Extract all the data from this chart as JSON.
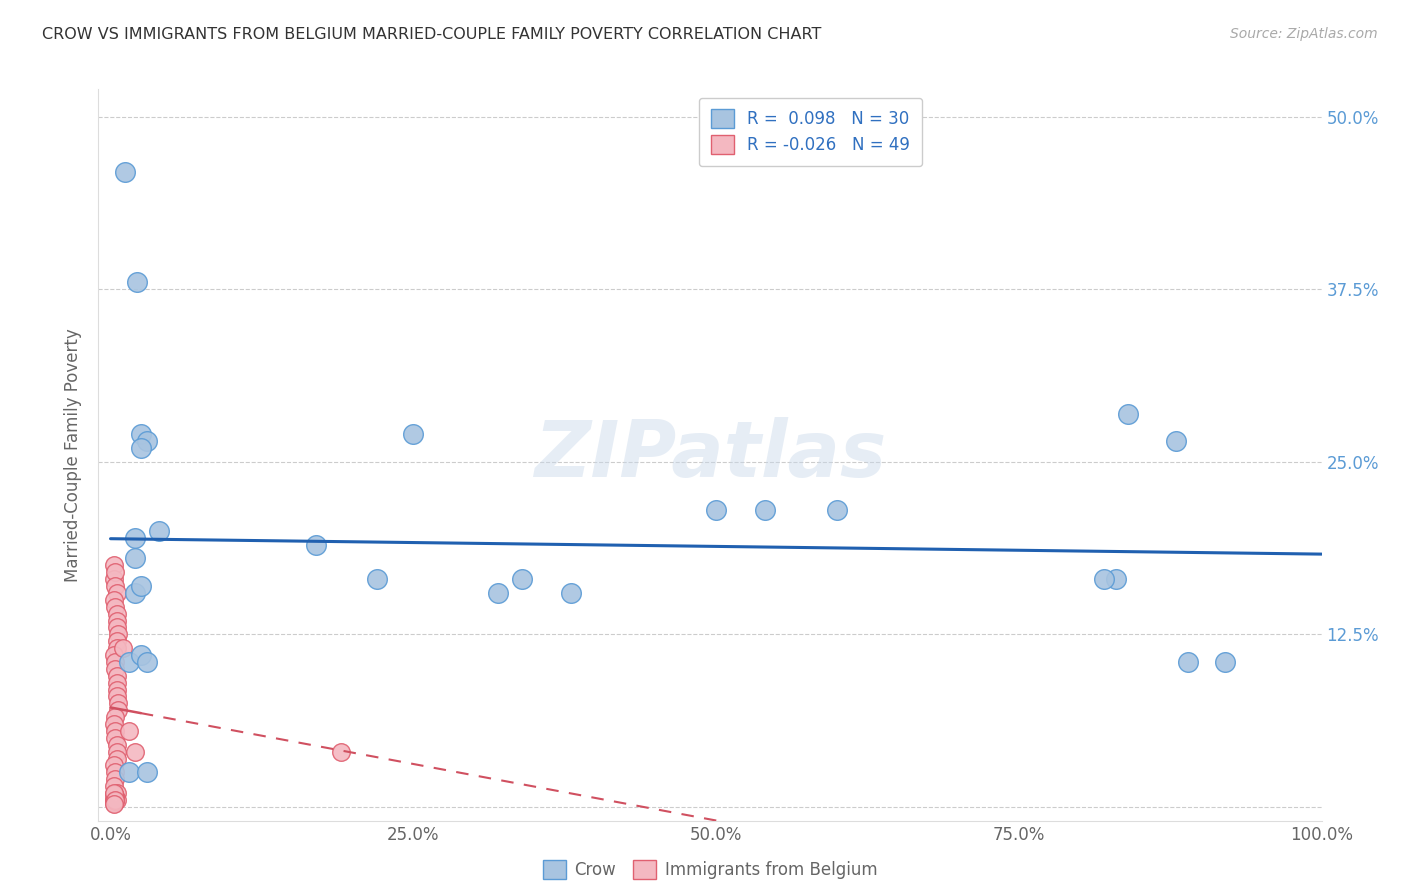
{
  "title": "CROW VS IMMIGRANTS FROM BELGIUM MARRIED-COUPLE FAMILY POVERTY CORRELATION CHART",
  "source": "Source: ZipAtlas.com",
  "ylabel": "Married-Couple Family Poverty",
  "xlim": [
    -0.01,
    1.0
  ],
  "ylim": [
    -0.01,
    0.52
  ],
  "xticks": [
    0.0,
    0.25,
    0.5,
    0.75,
    1.0
  ],
  "xticklabels": [
    "0.0%",
    "25.0%",
    "50.0%",
    "75.0%",
    "100.0%"
  ],
  "yticks": [
    0.0,
    0.125,
    0.25,
    0.375,
    0.5
  ],
  "yticklabels": [
    "",
    "12.5%",
    "25.0%",
    "37.5%",
    "50.0%"
  ],
  "crow_color": "#a8c4e0",
  "crow_edge_color": "#5b9bd5",
  "belgium_color": "#f4b8c1",
  "belgium_edge_color": "#e06070",
  "trend_crow_color": "#2060b0",
  "trend_belgium_color": "#d05060",
  "crow_R": 0.098,
  "crow_N": 30,
  "belgium_R": -0.026,
  "belgium_N": 49,
  "legend_label_crow": "Crow",
  "legend_label_belgium": "Immigrants from Belgium",
  "watermark": "ZIPatlas",
  "crow_x": [
    0.012,
    0.022,
    0.025,
    0.03,
    0.025,
    0.04,
    0.02,
    0.02,
    0.02,
    0.025,
    0.17,
    0.22,
    0.25,
    0.34,
    0.6,
    0.84,
    0.88,
    0.92,
    0.83,
    0.89,
    0.32,
    0.38,
    0.5,
    0.82,
    0.54,
    0.015,
    0.025,
    0.03,
    0.015,
    0.03
  ],
  "crow_y": [
    0.46,
    0.38,
    0.27,
    0.265,
    0.26,
    0.2,
    0.195,
    0.18,
    0.155,
    0.16,
    0.19,
    0.165,
    0.27,
    0.165,
    0.215,
    0.285,
    0.265,
    0.105,
    0.165,
    0.105,
    0.155,
    0.155,
    0.215,
    0.165,
    0.215,
    0.105,
    0.11,
    0.105,
    0.025,
    0.025
  ],
  "belgium_x": [
    0.003,
    0.003,
    0.004,
    0.004,
    0.005,
    0.003,
    0.004,
    0.005,
    0.005,
    0.005,
    0.006,
    0.005,
    0.005,
    0.003,
    0.004,
    0.004,
    0.005,
    0.005,
    0.005,
    0.005,
    0.006,
    0.006,
    0.004,
    0.003,
    0.004,
    0.004,
    0.005,
    0.005,
    0.005,
    0.003,
    0.004,
    0.004,
    0.003,
    0.005,
    0.005,
    0.01,
    0.015,
    0.02,
    0.19,
    0.003,
    0.003,
    0.004,
    0.004,
    0.003,
    0.003,
    0.003,
    0.004,
    0.004,
    0.003
  ],
  "belgium_y": [
    0.175,
    0.165,
    0.17,
    0.16,
    0.155,
    0.15,
    0.145,
    0.14,
    0.135,
    0.13,
    0.125,
    0.12,
    0.115,
    0.11,
    0.105,
    0.1,
    0.095,
    0.09,
    0.085,
    0.08,
    0.075,
    0.07,
    0.065,
    0.06,
    0.055,
    0.05,
    0.045,
    0.04,
    0.035,
    0.03,
    0.025,
    0.02,
    0.015,
    0.01,
    0.005,
    0.115,
    0.055,
    0.04,
    0.04,
    0.005,
    0.006,
    0.007,
    0.008,
    0.009,
    0.01,
    0.003,
    0.004,
    0.005,
    0.002
  ]
}
